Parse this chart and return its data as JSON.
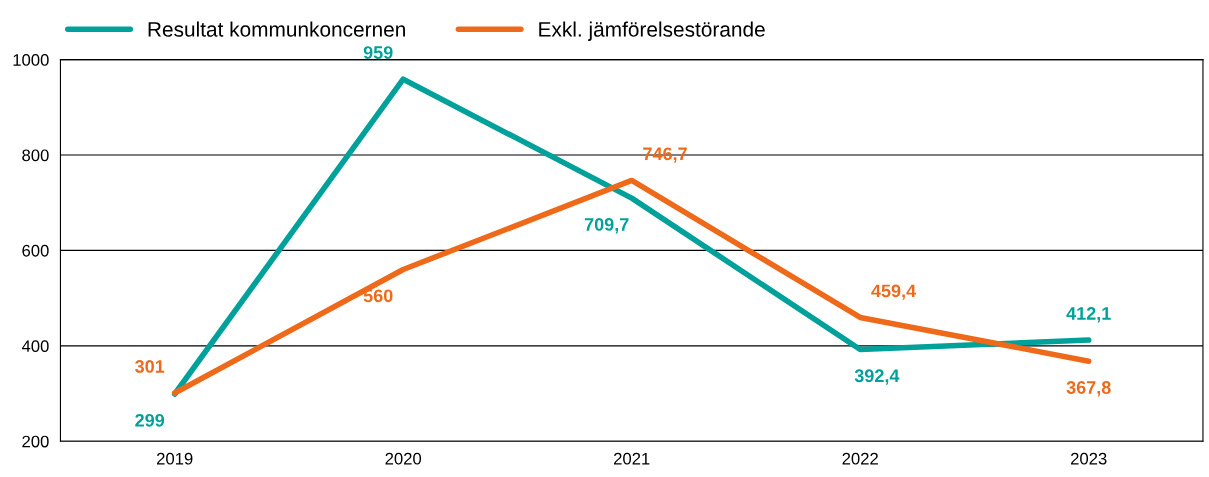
{
  "chart_data": {
    "type": "line",
    "categories": [
      "2019",
      "2020",
      "2021",
      "2022",
      "2023"
    ],
    "series": [
      {
        "name": "Resultat kommunkoncernen",
        "color": "#00a19a",
        "values": [
          299,
          959,
          709.7,
          392.4,
          412.1
        ],
        "value_labels": [
          "299",
          "959",
          "709,7",
          "392,4",
          "412,1"
        ]
      },
      {
        "name": "Exkl. jämförelsestörande",
        "color": "#ee6a1a",
        "values": [
          301,
          560,
          746.7,
          459.4,
          367.8
        ],
        "value_labels": [
          "301",
          "560",
          "746,7",
          "459,4",
          "367,8"
        ]
      }
    ],
    "ylim": [
      200,
      1000
    ],
    "yticks": [
      200,
      400,
      600,
      800,
      1000
    ],
    "grid": "y",
    "legend": "top left",
    "marker": "none",
    "line_style": "solid"
  }
}
